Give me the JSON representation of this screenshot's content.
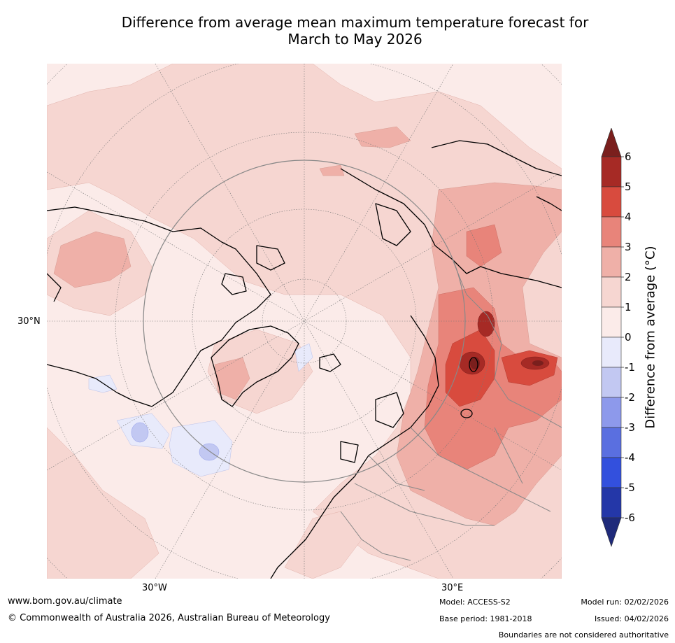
{
  "title": {
    "line1": "Difference from average mean maximum temperature forecast for",
    "line2": "March to May 2026"
  },
  "map": {
    "projection": "Northern Hemisphere polar stereographic",
    "tick_labels": {
      "left_lat": "30°N",
      "bottom_left": "30°W",
      "bottom_right": "30°E"
    }
  },
  "colorbar": {
    "label": "Difference from average (°C)",
    "ticks": [
      "6",
      "5",
      "4",
      "3",
      "2",
      "1",
      "0",
      "-1",
      "-2",
      "-3",
      "-4",
      "-5",
      "-6"
    ],
    "colors_high_to_low": [
      "#a62a25",
      "#d84b3e",
      "#e8847a",
      "#efb0a8",
      "#f6d6d1",
      "#fbebe9",
      "#e8eafb",
      "#c2c8f2",
      "#8d99eb",
      "#5a6fe0",
      "#3350dd",
      "#2437a8"
    ],
    "extend_high_color": "#7a1f1d",
    "extend_low_color": "#1f2a7a",
    "range": [
      -6,
      6
    ]
  },
  "footer": {
    "website": "www.bom.gov.au/climate",
    "copyright": "© Commonwealth of Australia 2026, Australian Bureau of Meteorology",
    "model": "Model: ACCESS-S2",
    "base_period": "Base period: 1981-2018",
    "model_run": "Model run: 02/02/2026",
    "issued": "Issued: 04/02/2026",
    "disclaimer": "Boundaries are not considered authoritative"
  }
}
